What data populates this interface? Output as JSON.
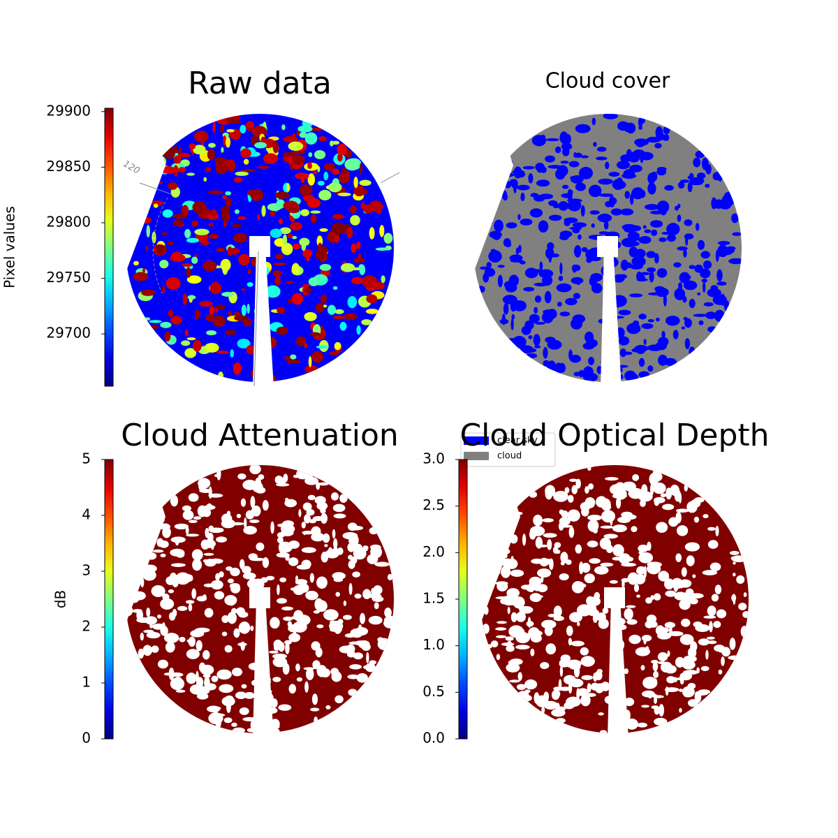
{
  "chart_data": [
    {
      "type": "image",
      "title": "Raw data",
      "colormap": "jet",
      "colorbar": {
        "label": "Pixel values",
        "ylim": [
          29653,
          29903
        ],
        "yticks": [
          29700,
          29750,
          29800,
          29850,
          29900
        ]
      },
      "annotations": [
        "120"
      ]
    },
    {
      "type": "image",
      "title": "Cloud cover",
      "series": [
        {
          "name": "clear sky",
          "color": "#0000ff"
        },
        {
          "name": "cloud",
          "color": "#808080"
        }
      ]
    },
    {
      "type": "image",
      "title": "Cloud Attenuation",
      "colormap": "jet",
      "colorbar": {
        "label": "dB",
        "ylim": [
          0,
          5
        ],
        "yticks": [
          0,
          1,
          2,
          3,
          4,
          5
        ]
      }
    },
    {
      "type": "image",
      "title": "Cloud Optical Depth",
      "colormap": "jet",
      "colorbar": {
        "ylim": [
          0,
          3
        ],
        "yticks": [
          {
            "value": 0,
            "label": "0.0"
          },
          0.5,
          {
            "value": 1,
            "label": "1.0"
          },
          1.5,
          {
            "value": 2,
            "label": "2.0"
          },
          2.5,
          {
            "value": 3,
            "label": "3.0"
          }
        ]
      }
    }
  ]
}
